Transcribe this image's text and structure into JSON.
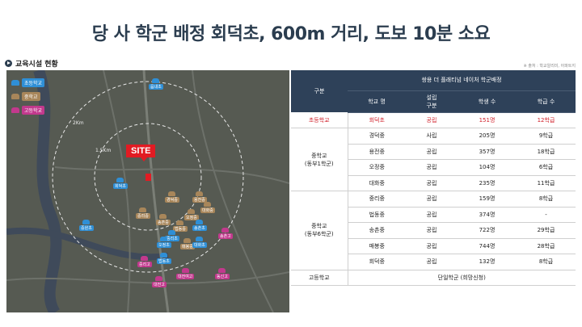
{
  "headline": "당 사 학군 배정 회덕초, 600m 거리, 도보 10분 소요",
  "section_title": "교육시설 현황",
  "source_note": "※ 출처 : 학교알리미, 아파트지",
  "map": {
    "legend": [
      {
        "label": "초등학교",
        "color": "#2f8fd6"
      },
      {
        "label": "중학교",
        "color": "#a8865a"
      },
      {
        "label": "고등학교",
        "color": "#c2398d"
      }
    ],
    "ring_labels": [
      "2Km",
      "1.5Km"
    ],
    "site_label": "SITE",
    "site_school": "회덕초",
    "school_pins": [
      {
        "label": "중리중",
        "type": "middle"
      },
      {
        "label": "송촌중",
        "type": "middle"
      },
      {
        "label": "매봉중",
        "type": "middle"
      },
      {
        "label": "대화중",
        "type": "middle"
      },
      {
        "label": "오정중",
        "type": "middle"
      },
      {
        "label": "경덕중",
        "type": "middle"
      },
      {
        "label": "법동중",
        "type": "middle"
      },
      {
        "label": "용전중",
        "type": "middle"
      },
      {
        "label": "읍내초",
        "type": "elementary"
      },
      {
        "label": "중리초",
        "type": "elementary"
      },
      {
        "label": "송촌초",
        "type": "elementary"
      },
      {
        "label": "법동초",
        "type": "elementary"
      },
      {
        "label": "대화초",
        "type": "elementary"
      },
      {
        "label": "오정초",
        "type": "elementary"
      },
      {
        "label": "중원초",
        "type": "elementary"
      },
      {
        "label": "동신고",
        "type": "high"
      },
      {
        "label": "대전고",
        "type": "high"
      },
      {
        "label": "송촌고",
        "type": "high"
      },
      {
        "label": "중리고",
        "type": "high"
      },
      {
        "label": "대전여고",
        "type": "high"
      }
    ]
  },
  "table": {
    "header_category": "구분",
    "header_group": "쌍용 더 플래티넘 네이처 학군배정",
    "columns": [
      "학교 명",
      "설립\n구분",
      "학생 수",
      "학급 수"
    ],
    "groups": [
      {
        "category": "초등학교",
        "highlight": true,
        "rows": [
          [
            "회덕초",
            "공립",
            "151명",
            "12학급"
          ]
        ]
      },
      {
        "category": "중학교\n(동부1학군)",
        "highlight": false,
        "rows": [
          [
            "경덕중",
            "사립",
            "205명",
            "9학급"
          ],
          [
            "용전중",
            "공립",
            "357명",
            "18학급"
          ],
          [
            "오정중",
            "공립",
            "104명",
            "6학급"
          ],
          [
            "대화중",
            "공립",
            "235명",
            "11학급"
          ]
        ]
      },
      {
        "category": "중학교\n(동부6학군)",
        "highlight": false,
        "rows": [
          [
            "중리중",
            "공립",
            "159명",
            "8학급"
          ],
          [
            "법동중",
            "공립",
            "374명",
            "-"
          ],
          [
            "송촌중",
            "공립",
            "722명",
            "29학급"
          ],
          [
            "매봉중",
            "공립",
            "744명",
            "28학급"
          ],
          [
            "회덕중",
            "공립",
            "132명",
            "8학급"
          ]
        ]
      }
    ],
    "high_school": {
      "category": "고등학교",
      "value": "단일학군 (희망신청)"
    }
  }
}
